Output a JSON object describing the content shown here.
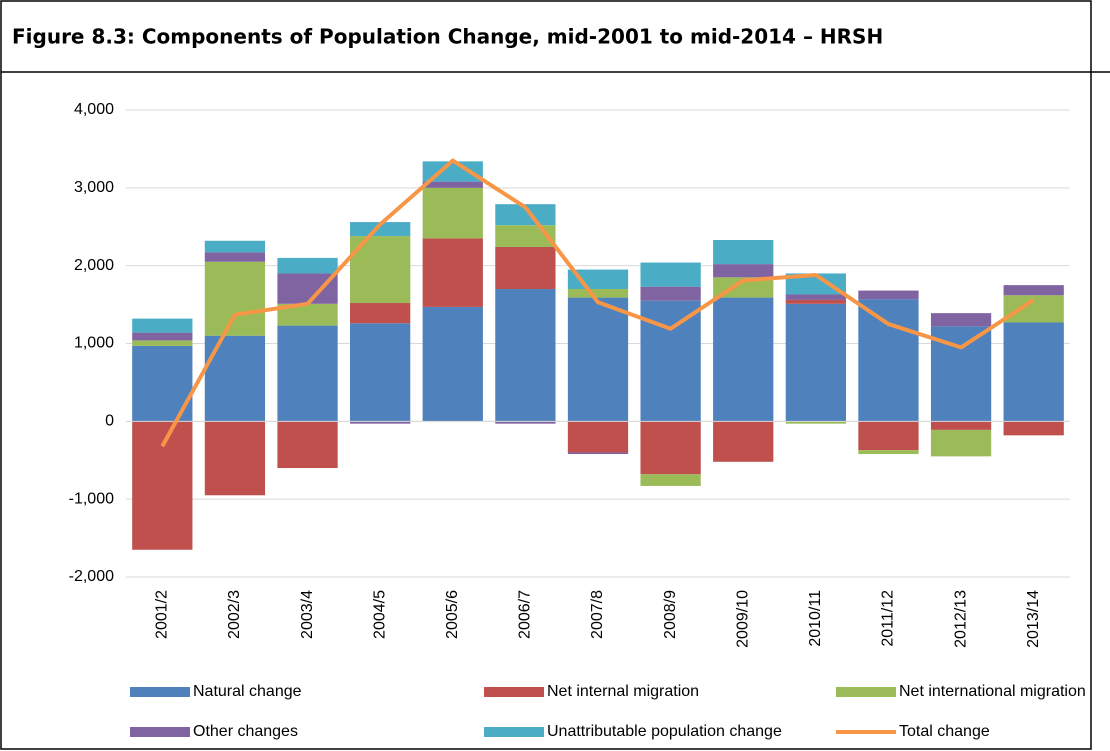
{
  "chart_data": {
    "type": "bar",
    "stacked": true,
    "title": "Figure 8.3: Components of Population Change, mid-2001 to mid-2014 – HRSH",
    "categories": [
      "2001/2",
      "2002/3",
      "2003/4",
      "2004/5",
      "2005/6",
      "2006/7",
      "2007/8",
      "2008/9",
      "2009/10",
      "2010/11",
      "2011/12",
      "2012/13",
      "2013/14"
    ],
    "series": [
      {
        "name": "Natural change",
        "color": "#4f81bd",
        "values": [
          970,
          1100,
          1230,
          1260,
          1470,
          1700,
          1590,
          1550,
          1590,
          1510,
          1570,
          1220,
          1270
        ]
      },
      {
        "name": "Net internal migration",
        "color": "#c0504d",
        "values": [
          -1650,
          -950,
          -600,
          260,
          880,
          540,
          -400,
          -680,
          -520,
          50,
          -370,
          -110,
          -180
        ]
      },
      {
        "name": "Net international migration",
        "color": "#9bbb59",
        "values": [
          70,
          950,
          280,
          860,
          650,
          280,
          110,
          -150,
          260,
          -30,
          -50,
          -340,
          350
        ]
      },
      {
        "name": "Other changes",
        "color": "#8064a2",
        "values": [
          100,
          120,
          390,
          -30,
          80,
          -30,
          -20,
          180,
          170,
          70,
          110,
          170,
          130
        ]
      },
      {
        "name": "Unattributable population change",
        "color": "#4bacc6",
        "values": [
          180,
          150,
          200,
          180,
          260,
          270,
          250,
          310,
          310,
          270,
          0,
          0,
          0
        ]
      },
      {
        "name": "Total change",
        "color": "#f79646",
        "type": "line",
        "values": [
          -320,
          1370,
          1510,
          2530,
          3350,
          2750,
          1530,
          1190,
          1810,
          1880,
          1250,
          950,
          1560
        ]
      }
    ],
    "ylim": [
      -2000,
      4000
    ],
    "yticks": [
      {
        "value": -2000,
        "label": "-2,000"
      },
      {
        "value": -1000,
        "label": "-1,000"
      },
      0,
      {
        "value": 1000,
        "label": "1,000"
      },
      {
        "value": 2000,
        "label": "2,000"
      },
      {
        "value": 3000,
        "label": "3,000"
      },
      {
        "value": 4000,
        "label": "4,000"
      }
    ],
    "grid": true,
    "legend": "bottom"
  }
}
